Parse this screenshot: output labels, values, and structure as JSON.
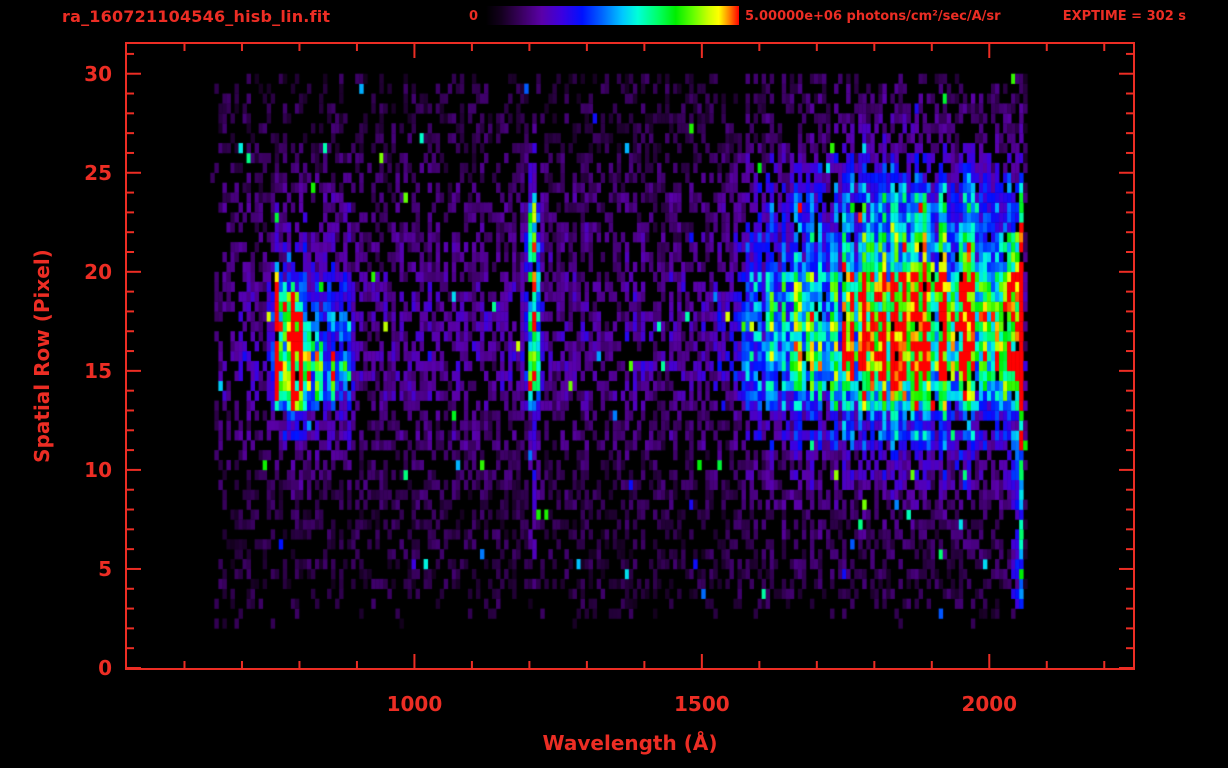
{
  "style": {
    "accent": "#ec2d24",
    "background": "#000000"
  },
  "header": {
    "filename": "ra_160721104546_hisb_lin.fit",
    "exptime": "EXPTIME = 302 s",
    "exptime_seconds": 302
  },
  "colorbar": {
    "min_label": "0",
    "max_label": "5.00000e+06 photons/cm²/sec/A/sr",
    "min_value": 0,
    "max_value": 5000000,
    "units": "photons/cm²/sec/A/sr"
  },
  "chart_data": {
    "type": "heatmap",
    "title": "",
    "xlabel": "Wavelength (Å)",
    "ylabel": "Spatial Row (Pixel)",
    "x_range": [
      500,
      2250
    ],
    "y_range": [
      0,
      31.5
    ],
    "x_major_ticks": [
      1000,
      1500,
      2000
    ],
    "x_minor_tick_step": 100,
    "y_major_ticks": [
      0,
      5,
      10,
      15,
      20,
      25,
      30
    ],
    "y_minor_tick_step": 1,
    "grid": false,
    "colorbar_range": [
      0,
      5000000
    ],
    "colormap_stops": [
      [
        0.0,
        "#000000"
      ],
      [
        0.06,
        "#14001e"
      ],
      [
        0.14,
        "#3a0060"
      ],
      [
        0.22,
        "#5a00a8"
      ],
      [
        0.3,
        "#3c00e0"
      ],
      [
        0.38,
        "#0010ff"
      ],
      [
        0.46,
        "#0066ff"
      ],
      [
        0.54,
        "#00c8ff"
      ],
      [
        0.6,
        "#00ffd8"
      ],
      [
        0.68,
        "#00ff66"
      ],
      [
        0.75,
        "#00ee00"
      ],
      [
        0.82,
        "#66ff00"
      ],
      [
        0.88,
        "#ccff00"
      ],
      [
        0.92,
        "#ffff00"
      ],
      [
        0.96,
        "#ff8800"
      ],
      [
        1.0,
        "#ff0000"
      ]
    ],
    "features": {
      "data_min_wavelength": 645,
      "data_max_wavelength": 2062,
      "data_min_row": 2,
      "data_max_row": 30,
      "mid_row_band": {
        "row": 17.5,
        "sigma": 5.0,
        "amp": 0.1
      },
      "broad_band": {
        "rise_start": 1470,
        "rise_end": 1700,
        "boost_start": 1720,
        "boost_end": 1810,
        "row": 17.8,
        "row_sigma": 3.3,
        "halo_sigma": 6.5,
        "amp_core": 0.26,
        "amp_halo": 0.15,
        "amp_boost": 0.3
      },
      "lyman_alpha": {
        "wavelength": 1205,
        "sigma": 7,
        "row_min": 13,
        "row_max": 24,
        "amp_core": 0.5,
        "amp_halo": 0.14
      },
      "left_cloud": {
        "wavelength_min": 745,
        "wavelength_max": 895,
        "row": 16.5,
        "row_sigma": 3.5,
        "amp": 0.18
      },
      "left_stripes": [
        [
          762,
          4.0,
          13.0,
          20.5,
          1.0
        ],
        [
          771,
          3.0,
          13.0,
          19.2,
          0.7
        ],
        [
          788,
          4.0,
          12.5,
          19.5,
          0.9
        ],
        [
          802,
          3.5,
          12.8,
          18.5,
          0.72
        ],
        [
          818,
          3.5,
          13.0,
          17.5,
          0.62
        ],
        [
          836,
          4.0,
          13.0,
          16.8,
          0.52
        ],
        [
          858,
          5.0,
          13.5,
          16.2,
          0.4
        ],
        [
          878,
          5.0,
          14.0,
          15.8,
          0.26
        ]
      ],
      "edge_column": {
        "wavelength_min": 2040,
        "wavelength_max": 2062,
        "row_min": 2.5,
        "row_max": 23,
        "amp_upper": 0.55,
        "amp_lower": 0.3
      }
    }
  }
}
